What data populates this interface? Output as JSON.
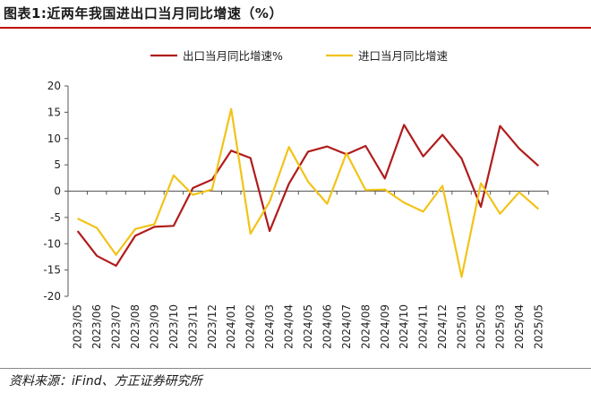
{
  "title": "图表1:近两年我国进出口当月同比增速（%）",
  "source": "资料来源：iFind、方正证券研究所",
  "chart_data": {
    "type": "line",
    "categories": [
      "2023/05",
      "2023/06",
      "2023/07",
      "2023/08",
      "2023/09",
      "2023/10",
      "2023/11",
      "2023/12",
      "2024/01",
      "2024/02",
      "2024/03",
      "2024/04",
      "2024/05",
      "2024/06",
      "2024/07",
      "2024/08",
      "2024/09",
      "2024/10",
      "2024/11",
      "2024/12",
      "2025/01",
      "2025/02",
      "2025/03",
      "2025/04",
      "2025/05"
    ],
    "series": [
      {
        "name": "出口当月同比增速%",
        "color": "#b01c1c",
        "values": [
          -7.6,
          -12.3,
          -14.2,
          -8.5,
          -6.8,
          -6.6,
          0.6,
          2.2,
          7.7,
          6.3,
          -7.6,
          1.4,
          7.5,
          8.5,
          7.0,
          8.6,
          2.4,
          12.6,
          6.6,
          10.7,
          6.2,
          -3.0,
          12.4,
          8.1,
          4.8
        ]
      },
      {
        "name": "进口当月同比增速",
        "color": "#f2c318",
        "values": [
          -5.2,
          -7.0,
          -12.1,
          -7.2,
          -6.3,
          3.0,
          -0.7,
          0.3,
          15.6,
          -8.1,
          -2.0,
          8.4,
          1.8,
          -2.4,
          7.2,
          0.2,
          0.3,
          -2.2,
          -3.9,
          1.0,
          -16.3,
          1.5,
          -4.3,
          -0.2,
          -3.4
        ]
      }
    ],
    "ylim": [
      -20,
      20
    ],
    "yticks": [
      20,
      15,
      10,
      5,
      0,
      -5,
      -10,
      -15,
      -20
    ],
    "xlabel": "",
    "ylabel": "",
    "legend": "top-center",
    "grid": false
  }
}
